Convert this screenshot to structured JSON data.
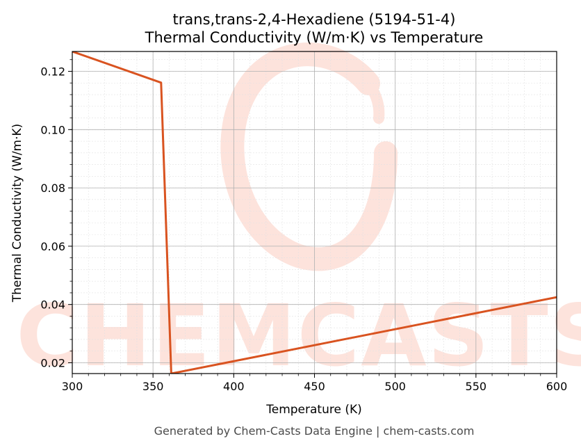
{
  "chart_data": {
    "type": "line",
    "title": "trans,trans-2,4-Hexadiene (5194-51-4)",
    "subtitle": "Thermal Conductivity (W/m·K) vs Temperature",
    "xlabel": "Temperature (K)",
    "ylabel": "Thermal Conductivity (W/m·K)",
    "xlim": [
      300,
      600
    ],
    "ylim": [
      0.0163,
      0.1268
    ],
    "x_ticks": [
      300,
      350,
      400,
      450,
      500,
      550,
      600
    ],
    "y_ticks": [
      0.02,
      0.04,
      0.06,
      0.08,
      0.1,
      0.12
    ],
    "x_tick_labels": [
      "300",
      "350",
      "400",
      "450",
      "500",
      "550",
      "600"
    ],
    "y_tick_labels": [
      "0.02",
      "0.04",
      "0.06",
      "0.08",
      "0.10",
      "0.12"
    ],
    "grid": true,
    "legend": "none",
    "series": [
      {
        "color": "#d95320",
        "x": [
          300,
          355,
          361.3,
          600
        ],
        "y": [
          0.1268,
          0.1161,
          0.0163,
          0.0425
        ]
      }
    ]
  },
  "watermark": {
    "text": "CHEMCASTS",
    "color": "#fde3dc"
  },
  "footer": {
    "text": "Generated by Chem-Casts Data Engine | chem-casts.com"
  }
}
